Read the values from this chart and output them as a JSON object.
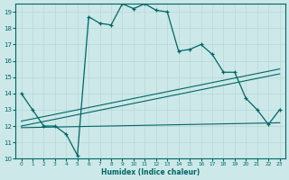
{
  "xlabel": "Humidex (Indice chaleur)",
  "bg_color": "#cce8e8",
  "grid_color": "#b8d8d8",
  "line_color": "#006666",
  "xlim": [
    -0.5,
    23.5
  ],
  "ylim": [
    10,
    19.5
  ],
  "xticks": [
    0,
    1,
    2,
    3,
    4,
    5,
    6,
    7,
    8,
    9,
    10,
    11,
    12,
    13,
    14,
    15,
    16,
    17,
    18,
    19,
    20,
    21,
    22,
    23
  ],
  "yticks": [
    10,
    11,
    12,
    13,
    14,
    15,
    16,
    17,
    18,
    19
  ],
  "curve1_x": [
    0,
    1,
    2,
    3,
    4,
    5,
    6,
    7,
    8,
    9,
    10,
    11,
    12,
    13,
    14,
    15,
    16,
    17,
    18,
    19,
    20,
    21,
    22,
    23
  ],
  "curve1_y": [
    14,
    13,
    12,
    12,
    11.5,
    10.2,
    18.7,
    18.3,
    18.2,
    19.5,
    19.2,
    19.5,
    19.1,
    19.0,
    16.6,
    16.7,
    17.0,
    16.4,
    15.3,
    15.3,
    13.7,
    13.0,
    12.1,
    13.0
  ],
  "line1_x": [
    0,
    23
  ],
  "line1_y": [
    12.0,
    15.2
  ],
  "line2_x": [
    0,
    23
  ],
  "line2_y": [
    12.3,
    15.5
  ],
  "line3_x": [
    0,
    23
  ],
  "line3_y": [
    11.9,
    12.2
  ]
}
